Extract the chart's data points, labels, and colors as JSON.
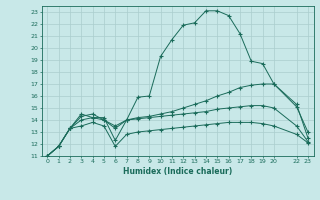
{
  "xlabel": "Humidex (Indice chaleur)",
  "ylabel": "",
  "background_color": "#c8e8e8",
  "grid_color": "#aacece",
  "line_color": "#1a6b5a",
  "xlim": [
    -0.5,
    23.5
  ],
  "ylim": [
    11,
    23.5
  ],
  "yticks": [
    11,
    12,
    13,
    14,
    15,
    16,
    17,
    18,
    19,
    20,
    21,
    22,
    23
  ],
  "xticks": [
    0,
    1,
    2,
    3,
    4,
    5,
    6,
    7,
    8,
    9,
    10,
    11,
    12,
    13,
    14,
    15,
    16,
    17,
    18,
    19,
    20,
    22,
    23
  ],
  "xtick_labels": [
    "0",
    "1",
    "2",
    "3",
    "4",
    "5",
    "6",
    "7",
    "8",
    "9",
    "10",
    "11",
    "12",
    "13",
    "14",
    "15",
    "16",
    "17",
    "18",
    "19",
    "20",
    "22",
    "23"
  ],
  "series": [
    {
      "x": [
        0,
        1,
        2,
        3,
        4,
        5,
        6,
        7,
        8,
        9,
        10,
        11,
        12,
        13,
        14,
        15,
        16,
        17,
        18,
        19,
        20,
        22,
        23
      ],
      "y": [
        11,
        11.8,
        13.3,
        14.5,
        14.2,
        14.2,
        12.3,
        14.0,
        15.9,
        16.0,
        19.3,
        20.7,
        21.9,
        22.1,
        23.1,
        23.1,
        22.7,
        21.2,
        18.9,
        18.7,
        17.0,
        15.1,
        13.0
      ]
    },
    {
      "x": [
        0,
        1,
        2,
        3,
        4,
        5,
        6,
        7,
        8,
        9,
        10,
        11,
        12,
        13,
        14,
        15,
        16,
        17,
        18,
        19,
        20,
        22,
        23
      ],
      "y": [
        11,
        11.8,
        13.3,
        14.3,
        14.5,
        14.0,
        13.3,
        14.0,
        14.2,
        14.3,
        14.5,
        14.7,
        15.0,
        15.3,
        15.6,
        16.0,
        16.3,
        16.7,
        16.9,
        17.0,
        17.0,
        15.3,
        12.5
      ]
    },
    {
      "x": [
        0,
        1,
        2,
        3,
        4,
        5,
        6,
        7,
        8,
        9,
        10,
        11,
        12,
        13,
        14,
        15,
        16,
        17,
        18,
        19,
        20,
        22,
        23
      ],
      "y": [
        11,
        11.8,
        13.3,
        14.0,
        14.2,
        14.0,
        13.5,
        14.0,
        14.1,
        14.2,
        14.3,
        14.4,
        14.5,
        14.6,
        14.7,
        14.9,
        15.0,
        15.1,
        15.2,
        15.2,
        15.0,
        13.5,
        12.2
      ]
    },
    {
      "x": [
        0,
        1,
        2,
        3,
        4,
        5,
        6,
        7,
        8,
        9,
        10,
        11,
        12,
        13,
        14,
        15,
        16,
        17,
        18,
        19,
        20,
        22,
        23
      ],
      "y": [
        11,
        11.8,
        13.3,
        13.5,
        13.8,
        13.5,
        11.8,
        12.8,
        13.0,
        13.1,
        13.2,
        13.3,
        13.4,
        13.5,
        13.6,
        13.7,
        13.8,
        13.8,
        13.8,
        13.7,
        13.5,
        12.8,
        12.1
      ]
    }
  ]
}
